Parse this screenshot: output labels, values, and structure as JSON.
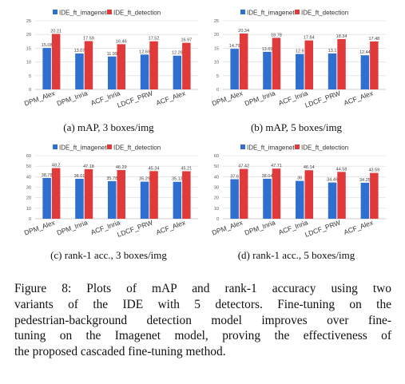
{
  "colors": {
    "imagenet": "#2f6fd0",
    "detection": "#e03a3a",
    "grid": "#d9d9d9",
    "tick": "#595959"
  },
  "panels": [
    {
      "id": "a",
      "caption": "(a) mAP, 3 boxes/img"
    },
    {
      "id": "b",
      "caption": "(b) mAP, 5 boxes/img"
    },
    {
      "id": "c",
      "caption": "(c) rank-1 acc., 3 boxes/img"
    },
    {
      "id": "d",
      "caption": "(d) rank-1 acc., 5 boxes/img"
    }
  ],
  "figure_caption": {
    "lines": [
      "Figure 8:  Plots of mAP and rank-1 accuracy using two",
      "variants of the IDE with 5 detectors.  Fine-tuning on the",
      "pedestrian-background detection model improves over fine-",
      "tuning on the Imagenet model, proving the effectiveness of",
      "the proposed cascaded fine-tuning method."
    ]
  },
  "chart_data": [
    {
      "type": "bar",
      "categories": [
        "DPM_Alex",
        "DPM_Inria",
        "ACF_Inria",
        "LDCF_PRW",
        "ACF_Alex"
      ],
      "series": [
        {
          "name": "IDE_ft_imagenet",
          "values": [
            15.08,
            13.07,
            11.99,
            12.69,
            12.29
          ],
          "labels": [
            "15.08",
            "13.07",
            "11.99",
            "12.69",
            "12.29"
          ]
        },
        {
          "name": "IDE_ft_detection",
          "values": [
            20.21,
            17.59,
            16.46,
            17.52,
            16.97
          ],
          "labels": [
            "20.21",
            "17.59",
            "16.46",
            "17.52",
            "16.97"
          ]
        }
      ],
      "ylim": [
        0,
        25
      ],
      "yticks": [
        "0",
        "5",
        "10",
        "15",
        "20",
        "25"
      ],
      "grid": true,
      "legend": "top"
    },
    {
      "type": "bar",
      "categories": [
        "DPM_Alex",
        "DPM_Inria",
        "ACF_Inria",
        "LDCF_PRW",
        "ACF_Alex"
      ],
      "series": [
        {
          "name": "IDE_ft_imagenet",
          "values": [
            14.79,
            13.69,
            12.9,
            13.1,
            12.44
          ],
          "labels": [
            "14.79",
            "13.69",
            "12.9",
            "13.1",
            "12.44"
          ]
        },
        {
          "name": "IDE_ft_detection",
          "values": [
            20.34,
            18.78,
            17.84,
            18.34,
            17.48
          ],
          "labels": [
            "20.34",
            "18.78",
            "17.84",
            "18.34",
            "17.48"
          ]
        }
      ],
      "ylim": [
        0,
        25
      ],
      "yticks": [
        "0",
        "5",
        "10",
        "15",
        "20",
        "25"
      ],
      "grid": true,
      "legend": "top"
    },
    {
      "type": "bar",
      "categories": [
        "DPM_Alex",
        "DPM_Inria",
        "ACF_Inria",
        "LDCF_PRW",
        "ACF_Alex"
      ],
      "series": [
        {
          "name": "IDE_ft_imagenet",
          "values": [
            38.78,
            38.01,
            35.78,
            35.29,
            35.13
          ],
          "labels": [
            "38.78",
            "38.01",
            "35.78",
            "35.29",
            "35.13"
          ]
        },
        {
          "name": "IDE_ft_detection",
          "values": [
            48.2,
            47.18,
            46.29,
            45.34,
            45.21
          ],
          "labels": [
            "48.2",
            "47.18",
            "46.29",
            "45.34",
            "45.21"
          ]
        }
      ],
      "ylim": [
        0,
        60
      ],
      "yticks": [
        "0",
        "10",
        "20",
        "30",
        "40",
        "50",
        "60"
      ],
      "grid": true,
      "legend": "top"
    },
    {
      "type": "bar",
      "categories": [
        "DPM_Alex",
        "DPM_Inria",
        "ACF_Inria",
        "LDCF_PRW",
        "ACF_Alex"
      ],
      "series": [
        {
          "name": "IDE_ft_imagenet",
          "values": [
            37.6,
            38.04,
            36,
            34.46,
            34.25
          ],
          "labels": [
            "37.6",
            "38.04",
            "36",
            "34.46",
            "34.25"
          ]
        },
        {
          "name": "IDE_ft_detection",
          "values": [
            47.42,
            47.71,
            46.14,
            44.58,
            43.59
          ],
          "labels": [
            "47.42",
            "47.71",
            "46.14",
            "44.58",
            "43.59"
          ]
        }
      ],
      "ylim": [
        0,
        60
      ],
      "yticks": [
        "0",
        "10",
        "20",
        "30",
        "40",
        "50",
        "60"
      ],
      "grid": true,
      "legend": "top"
    }
  ]
}
